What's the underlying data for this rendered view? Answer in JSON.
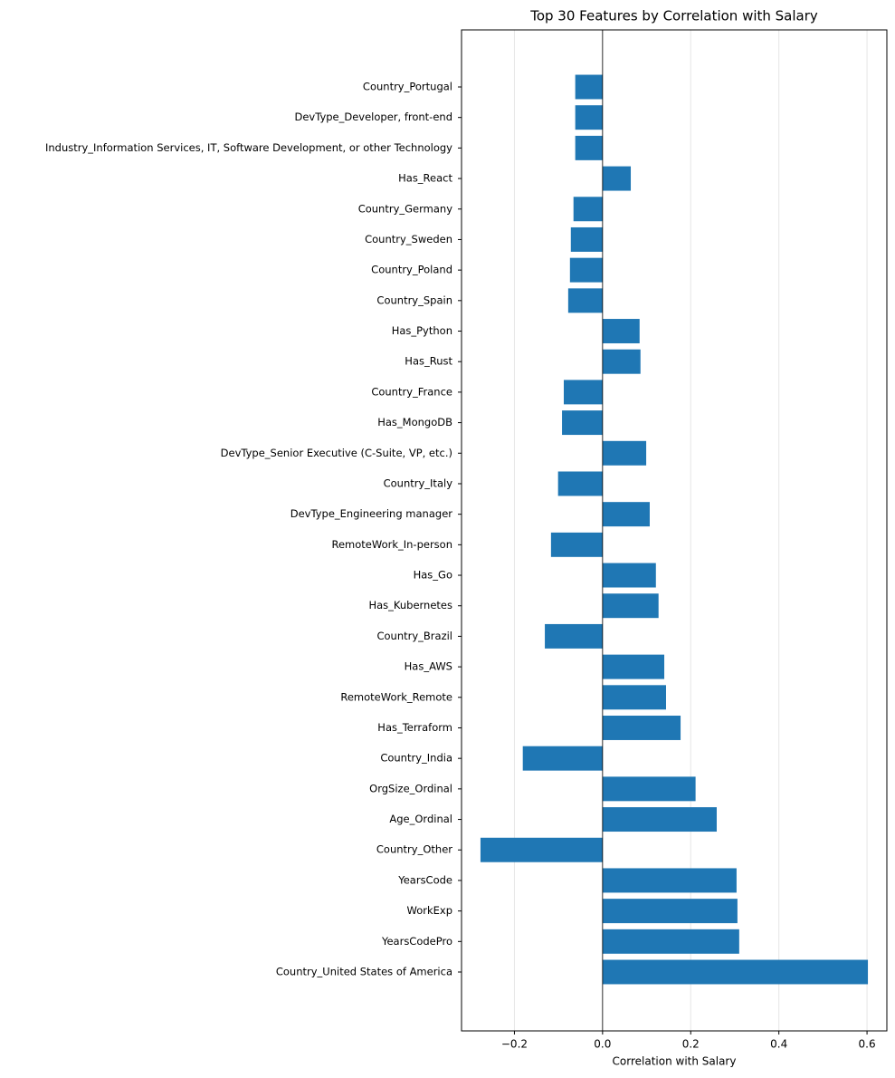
{
  "chart_data": {
    "type": "barh",
    "title": "Top 30 Features by Correlation with Salary",
    "x_label": "Correlation with Salary",
    "categories": [
      "Country_Portugal",
      "DevType_Developer, front-end",
      "Industry_Information Services, IT, Software Development, or other Technology",
      "Has_React",
      "Country_Germany",
      "Country_Sweden",
      "Country_Poland",
      "Country_Spain",
      "Has_Python",
      "Has_Rust",
      "Country_France",
      "Has_MongoDB",
      "DevType_Senior Executive (C-Suite, VP, etc.)",
      "Country_Italy",
      "DevType_Engineering manager",
      "RemoteWork_In-person",
      "Has_Go",
      "Has_Kubernetes",
      "Country_Brazil",
      "Has_AWS",
      "RemoteWork_Remote",
      "Has_Terraform",
      "Country_India",
      "OrgSize_Ordinal",
      "Age_Ordinal",
      "Country_Other",
      "YearsCode",
      "WorkExp",
      "YearsCodePro",
      "Country_United States of America"
    ],
    "values": [
      -0.062,
      -0.062,
      -0.062,
      0.064,
      -0.066,
      -0.072,
      -0.074,
      -0.078,
      0.084,
      0.086,
      -0.088,
      -0.092,
      0.099,
      -0.101,
      0.107,
      -0.117,
      0.121,
      0.127,
      -0.131,
      0.14,
      0.144,
      0.177,
      -0.181,
      0.211,
      0.259,
      -0.277,
      0.304,
      0.306,
      0.31,
      0.602
    ],
    "color": "#1f77b4",
    "xlim": [
      -0.32,
      0.645
    ],
    "xticks": [
      {
        "value": -0.2,
        "label": "−0.2"
      },
      {
        "value": 0,
        "label": "0.0"
      },
      0.2,
      0.4,
      0.6
    ],
    "grid": true
  }
}
